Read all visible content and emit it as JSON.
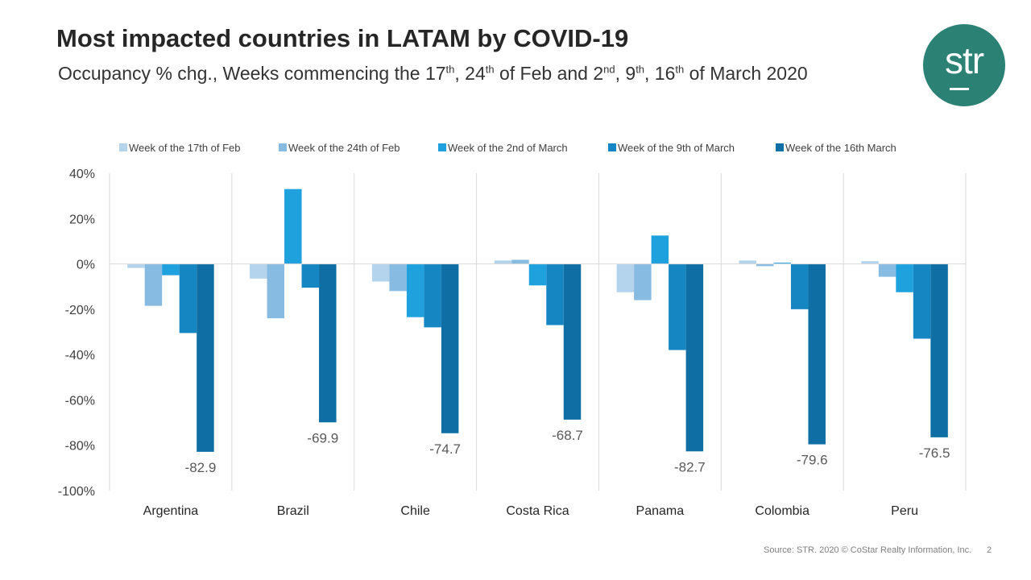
{
  "title": "Most impacted countries in LATAM by COVID-19",
  "subtitle": {
    "part1": "Occupancy % chg., Weeks commencing the 17",
    "sup1": "th",
    "part2": ", 24",
    "sup2": "th",
    "part3": " of Feb and 2",
    "sup3": "nd",
    "part4": ", 9",
    "sup4": "th",
    "part5": ", 16",
    "sup5": "th",
    "part6": " of March 2020"
  },
  "logo": {
    "text": "str",
    "color": "#2a8174"
  },
  "footer": {
    "source": "Source: STR. 2020 © CoStar Realty Information, Inc.",
    "page": "2"
  },
  "chart_data": {
    "type": "bar",
    "categories": [
      "Argentina",
      "Brazil",
      "Chile",
      "Costa Rica",
      "Panama",
      "Colombia",
      "Peru"
    ],
    "series": [
      {
        "name": "Week of the 17th of Feb",
        "color": "#b4d4ee",
        "values": [
          -1.8,
          -6.5,
          -7.8,
          1.5,
          -12.5,
          1.5,
          1.2
        ]
      },
      {
        "name": "Week of the 24th of Feb",
        "color": "#88bbe2",
        "values": [
          -18.5,
          -24.0,
          -12.0,
          1.8,
          -16.0,
          -1.0,
          -5.7
        ]
      },
      {
        "name": "Week of the 2nd of March",
        "color": "#1ea1dd",
        "values": [
          -5.0,
          33.0,
          -23.5,
          -9.5,
          12.5,
          0.5,
          -12.5
        ]
      },
      {
        "name": "Week of the 9th of March",
        "color": "#1686c3",
        "values": [
          -30.5,
          -10.5,
          -28.0,
          -27.0,
          -38.0,
          -20.0,
          -33.0
        ]
      },
      {
        "name": "Week of the 16th March",
        "color": "#0f6fa4",
        "values": [
          -82.9,
          -69.9,
          -74.7,
          -68.7,
          -82.7,
          -79.6,
          -76.5
        ]
      }
    ],
    "data_labels": [
      "-82.9",
      "-69.9",
      "-74.7",
      "-68.7",
      "-82.7",
      "-79.6",
      "-76.5"
    ],
    "y_ticks": [
      "40%",
      "20%",
      "0%",
      "-20%",
      "-40%",
      "-60%",
      "-80%",
      "-100%"
    ],
    "ylim": [
      -100,
      40
    ],
    "legend_position": "top",
    "title": "",
    "xlabel": "",
    "ylabel": ""
  }
}
